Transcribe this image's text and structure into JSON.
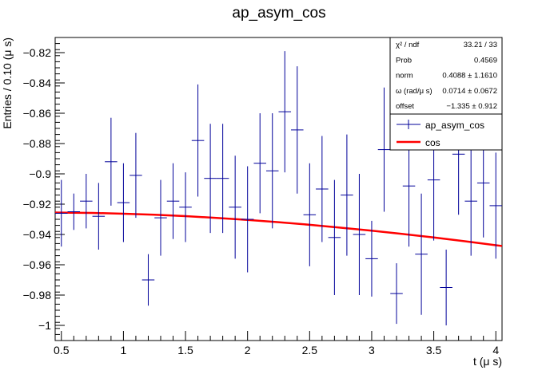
{
  "chart_data": {
    "type": "scatter",
    "title": "ap_asym_cos",
    "xlabel": "t (μ s)",
    "ylabel": "Entries / 0.10 (μ s)",
    "xlim": [
      0.45,
      4.05
    ],
    "ylim": [
      -1.01,
      -0.81
    ],
    "x_ticks": [
      0.5,
      1,
      1.5,
      2,
      2.5,
      3,
      3.5,
      4
    ],
    "x_tick_labels": [
      "0.5",
      "1",
      "1.5",
      "2",
      "2.5",
      "3",
      "3.5",
      "4"
    ],
    "y_ticks": [
      -1.0,
      -0.98,
      -0.96,
      -0.94,
      -0.92,
      -0.9,
      -0.88,
      -0.86,
      -0.84,
      -0.82
    ],
    "y_tick_labels": [
      "−1",
      "−0.98",
      "−0.96",
      "−0.94",
      "−0.92",
      "−0.9",
      "−0.88",
      "−0.86",
      "−0.84",
      "−0.82"
    ],
    "grid": false,
    "legend_position": "top-right",
    "bin_width": 0.1,
    "series": [
      {
        "name": "ap_asym_cos",
        "color": "#000099",
        "style": "errorbars",
        "x": [
          0.5,
          0.6,
          0.7,
          0.8,
          0.9,
          1.0,
          1.1,
          1.2,
          1.3,
          1.4,
          1.5,
          1.6,
          1.7,
          1.8,
          1.9,
          2.0,
          2.1,
          2.2,
          2.3,
          2.4,
          2.5,
          2.6,
          2.7,
          2.8,
          2.9,
          3.0,
          3.1,
          3.2,
          3.3,
          3.4,
          3.5,
          3.6,
          3.7,
          3.8,
          3.9,
          4.0
        ],
        "y": [
          -0.926,
          -0.925,
          -0.918,
          -0.928,
          -0.892,
          -0.919,
          -0.901,
          -0.97,
          -0.929,
          -0.918,
          -0.922,
          -0.878,
          -0.903,
          -0.903,
          -0.922,
          -0.93,
          -0.893,
          -0.898,
          -0.859,
          -0.871,
          -0.927,
          -0.91,
          -0.942,
          -0.914,
          -0.94,
          -0.956,
          -0.884,
          -0.979,
          -0.908,
          -0.953,
          -0.904,
          -0.975,
          -0.887,
          -0.918,
          -0.906,
          -0.921
        ],
        "err": [
          0.022,
          0.012,
          0.018,
          0.022,
          0.029,
          0.026,
          0.028,
          0.017,
          0.025,
          0.025,
          0.023,
          0.037,
          0.036,
          0.036,
          0.034,
          0.035,
          0.033,
          0.038,
          0.04,
          0.042,
          0.034,
          0.035,
          0.038,
          0.04,
          0.04,
          0.025,
          0.041,
          0.02,
          0.04,
          0.04,
          0.04,
          0.025,
          0.04,
          0.036,
          0.036,
          0.035
        ]
      },
      {
        "name": "cos",
        "color": "#ff0000",
        "style": "line",
        "x": [
          0.45,
          0.5,
          0.75,
          1.0,
          1.25,
          1.5,
          1.75,
          2.0,
          2.25,
          2.5,
          2.75,
          3.0,
          3.25,
          3.5,
          3.75,
          4.0,
          4.05
        ],
        "y": [
          -0.9255,
          -0.9256,
          -0.9258,
          -0.9263,
          -0.927,
          -0.9279,
          -0.9291,
          -0.9304,
          -0.9319,
          -0.9336,
          -0.9355,
          -0.9375,
          -0.9397,
          -0.942,
          -0.9445,
          -0.9471,
          -0.9476
        ]
      }
    ],
    "stats_box": {
      "rows": [
        {
          "label": "χ² / ndf",
          "value": "33.21 / 33"
        },
        {
          "label": "Prob",
          "value": "0.4569"
        },
        {
          "label": "norm",
          "value": "0.4088 ± 1.1610"
        },
        {
          "label": "ω (rad/μ s)",
          "value": "0.0714 ± 0.0672"
        },
        {
          "label": "offset",
          "value": "−1.335 ± 0.912"
        }
      ]
    }
  }
}
